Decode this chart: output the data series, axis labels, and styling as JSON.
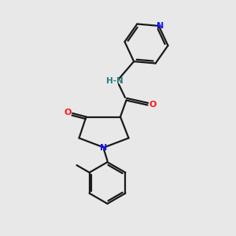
{
  "bg_color": "#e8e8e8",
  "bond_color": "#1a1a1a",
  "N_color": "#1414ff",
  "O_color": "#ff1414",
  "NH_color": "#2a7a7a",
  "line_width": 1.6,
  "figsize": [
    3.0,
    3.0
  ],
  "dpi": 100,
  "xlim": [
    0,
    10
  ],
  "ylim": [
    0,
    10
  ]
}
